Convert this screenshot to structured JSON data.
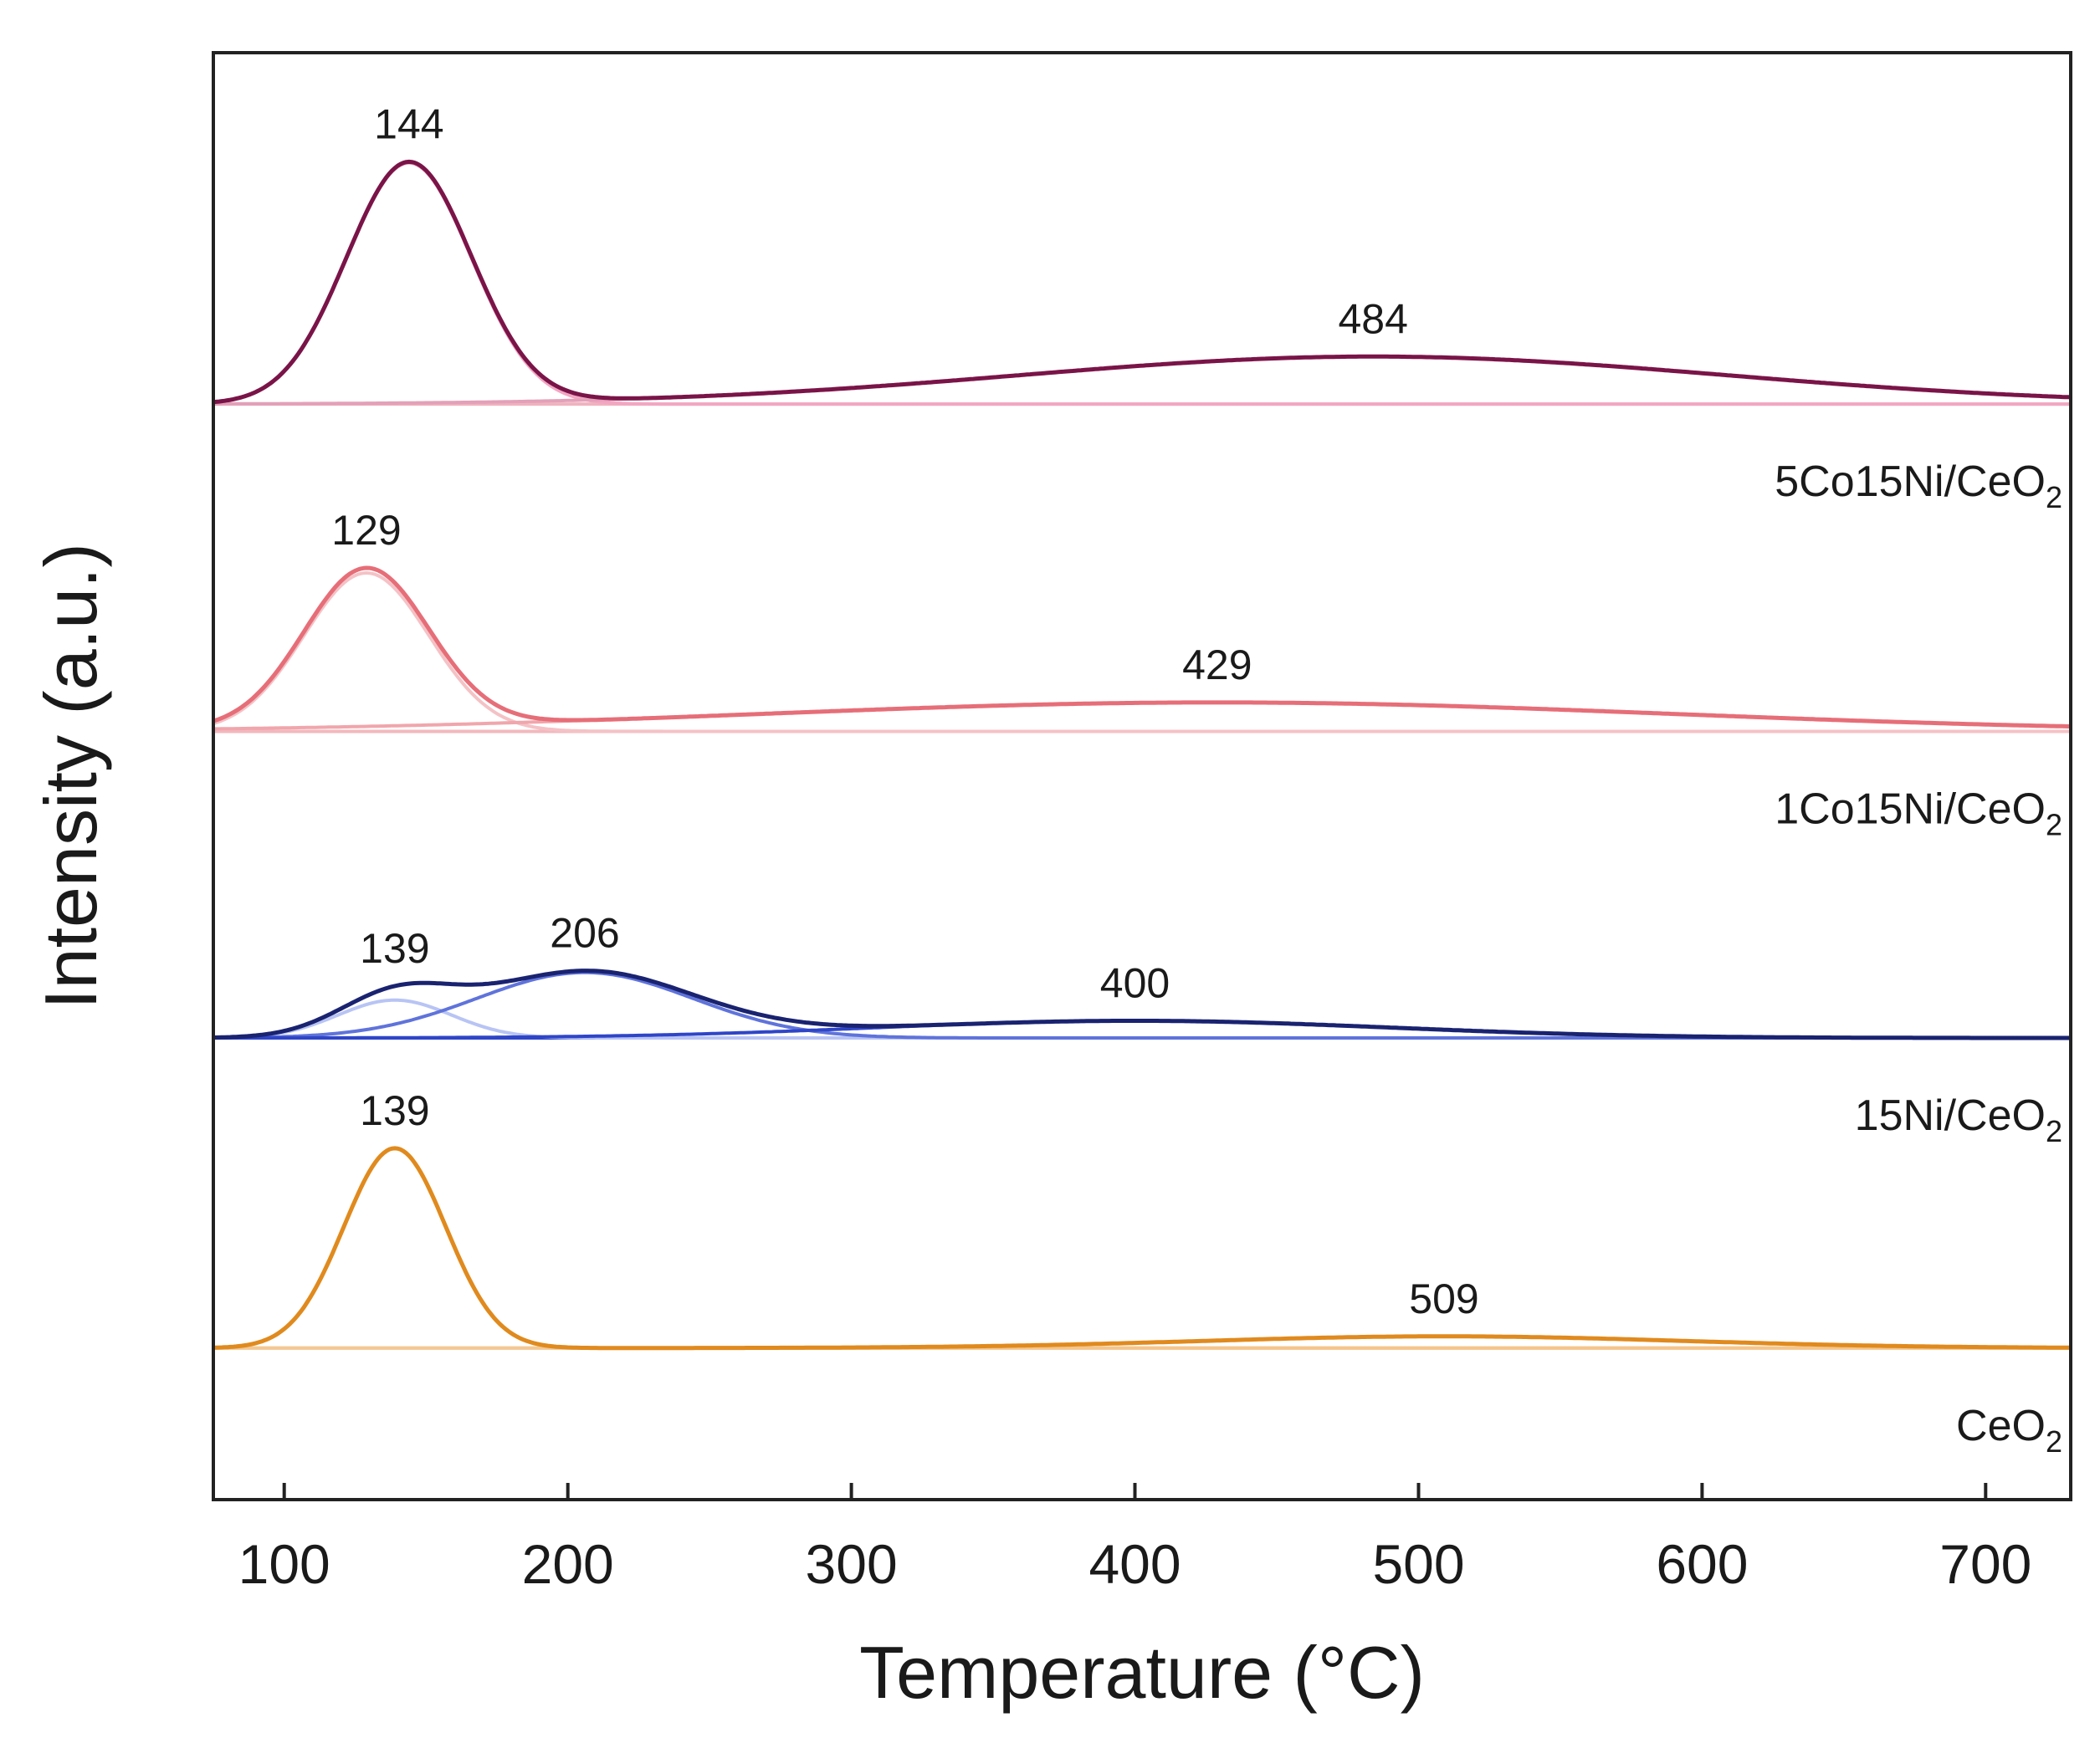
{
  "chart_data": {
    "type": "line",
    "title": "",
    "xlabel": "Temperature (°C)",
    "ylabel": "Intensity (a.u.)",
    "xlim": [
      75,
      730
    ],
    "ylim": [
      -2.2,
      18.8
    ],
    "x_ticks": [
      100,
      200,
      300,
      400,
      500,
      600,
      700
    ],
    "x_tick_labels": [
      "100",
      "200",
      "300",
      "400",
      "500",
      "600",
      "700"
    ],
    "y_ticks_shown": false,
    "grid": false,
    "stacking": "vertically offset traces",
    "samples": [
      {
        "name": "5Co15Ni/CeO2",
        "label_main": "5Co15Ni/CeO",
        "label_sub": "2",
        "offset": 13.7,
        "color": "#7a1448",
        "baseline_color": "#efb3bf",
        "peaks": [
          {
            "center": 144,
            "height": 3.5,
            "width": 22,
            "label": "144",
            "color": "#f2a6c2"
          },
          {
            "center": 484,
            "height": 0.69,
            "width": 125,
            "label": "484",
            "color": "#e3a0b8"
          }
        ]
      },
      {
        "name": "1Co15Ni/CeO2",
        "label_main": "1Co15Ni/CeO",
        "label_sub": "2",
        "offset": 8.95,
        "color": "#e66e78",
        "baseline_color": "#f2b8bd",
        "peaks": [
          {
            "center": 129,
            "height": 2.3,
            "width": 22,
            "label": "129",
            "color": "#f4c2c6"
          },
          {
            "center": 429,
            "height": 0.42,
            "width": 160,
            "label": "429",
            "color": "#f0a6ac"
          }
        ]
      },
      {
        "name": "15Ni/CeO2",
        "label_main": "15Ni/CeO",
        "label_sub": "2",
        "offset": 4.5,
        "color": "#1a2370",
        "baseline_color": "#3048c8",
        "peaks": [
          {
            "center": 139,
            "height": 0.55,
            "width": 20,
            "label": "139",
            "color": "#b8c4f4"
          },
          {
            "center": 206,
            "height": 0.95,
            "width": 38,
            "label": "206",
            "color": "#5f73db"
          },
          {
            "center": 400,
            "height": 0.25,
            "width": 90,
            "label": "400",
            "color": "#2f45c8"
          }
        ]
      },
      {
        "name": "CeO2",
        "label_main": "CeO",
        "label_sub": "2",
        "offset": 0,
        "color": "#e08a1e",
        "baseline_color": "#f0c089",
        "peaks": [
          {
            "center": 139,
            "height": 2.9,
            "width": 18,
            "label": "139",
            "color": "#f5c58a"
          },
          {
            "center": 509,
            "height": 0.17,
            "width": 85,
            "label": "509",
            "color": "#f3c892"
          }
        ]
      }
    ]
  }
}
